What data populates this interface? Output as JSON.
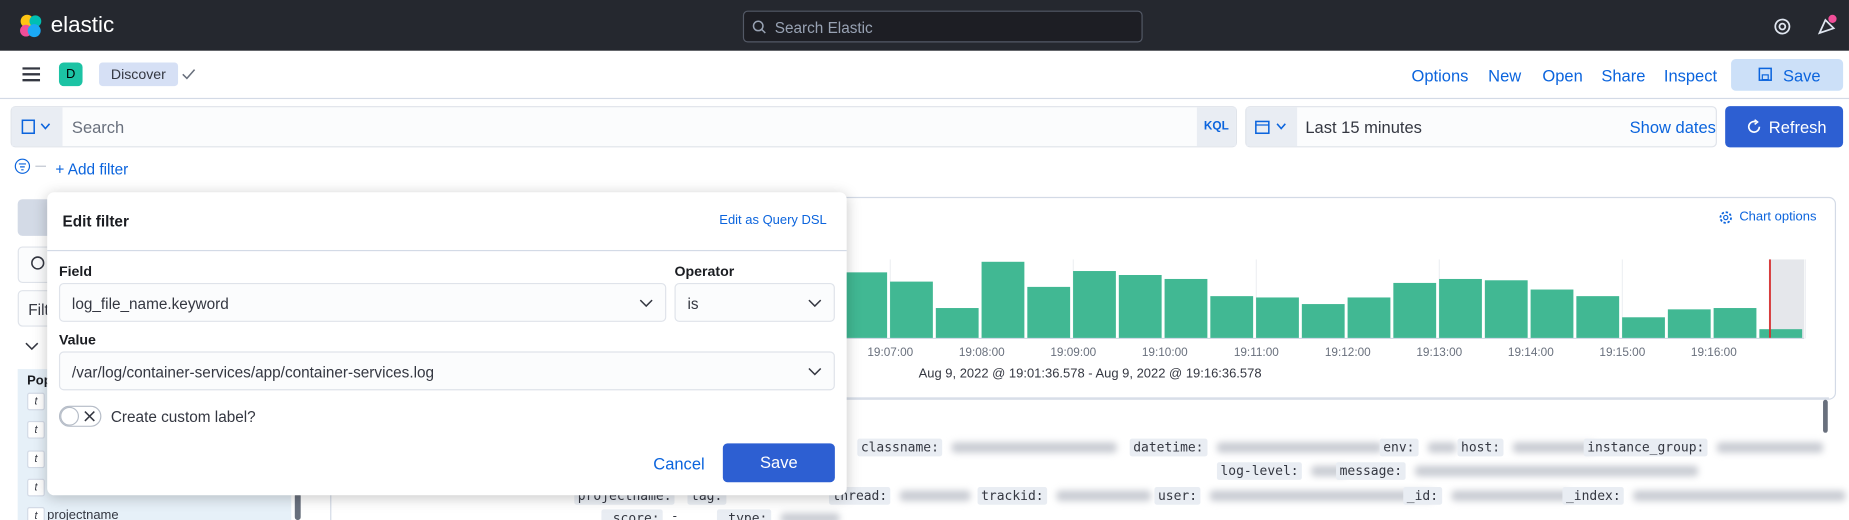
{
  "header": {
    "brand": "elastic",
    "search_placeholder": "Search Elastic"
  },
  "app_bar": {
    "space_initial": "D",
    "app_name": "Discover",
    "menu": [
      "Options",
      "New",
      "Open",
      "Share",
      "Inspect"
    ],
    "save": "Save"
  },
  "query_bar": {
    "placeholder": "Search",
    "language": "KQL",
    "time_range": "Last 15 minutes",
    "show_dates": "Show dates",
    "refresh": "Refresh"
  },
  "filter_bar": {
    "add_filter": "+ Add filter"
  },
  "sidebar": {
    "filter_text": "Filt",
    "popular_header": "Pop",
    "visible_field": "projectname"
  },
  "histogram": {
    "chart_options": "Chart options",
    "values": [
      50,
      43,
      23,
      58,
      39,
      51,
      48,
      45,
      32,
      31,
      26,
      31,
      42,
      45,
      44,
      37,
      32,
      16,
      22,
      23,
      7
    ],
    "x_labels": [
      "19:07:00",
      "19:08:00",
      "19:09:00",
      "19:10:00",
      "19:11:00",
      "19:12:00",
      "19:13:00",
      "19:14:00",
      "19:15:00",
      "19:16:00"
    ],
    "time_range": "Aug 9, 2022 @ 19:01:36.578 - Aug 9, 2022 @ 19:16:36.578"
  },
  "document": {
    "keys": [
      "classname:",
      "datetime:",
      "env:",
      "host:",
      "instance_group:",
      "log-level:",
      "message:",
      "projectname:",
      "tag:",
      "thread:",
      "trackid:",
      "user:",
      "_id:",
      "_index:",
      "_score:",
      "_type:"
    ],
    "dash": "-"
  },
  "edit_filter": {
    "title": "Edit filter",
    "query_dsl": "Edit as Query DSL",
    "field_label": "Field",
    "field_value": "log_file_name.keyword",
    "operator_label": "Operator",
    "operator_value": "is",
    "value_label": "Value",
    "value": "/var/log/container-services/app/container-services.log",
    "custom_label": "Create custom label?",
    "cancel": "Cancel",
    "save": "Save"
  }
}
